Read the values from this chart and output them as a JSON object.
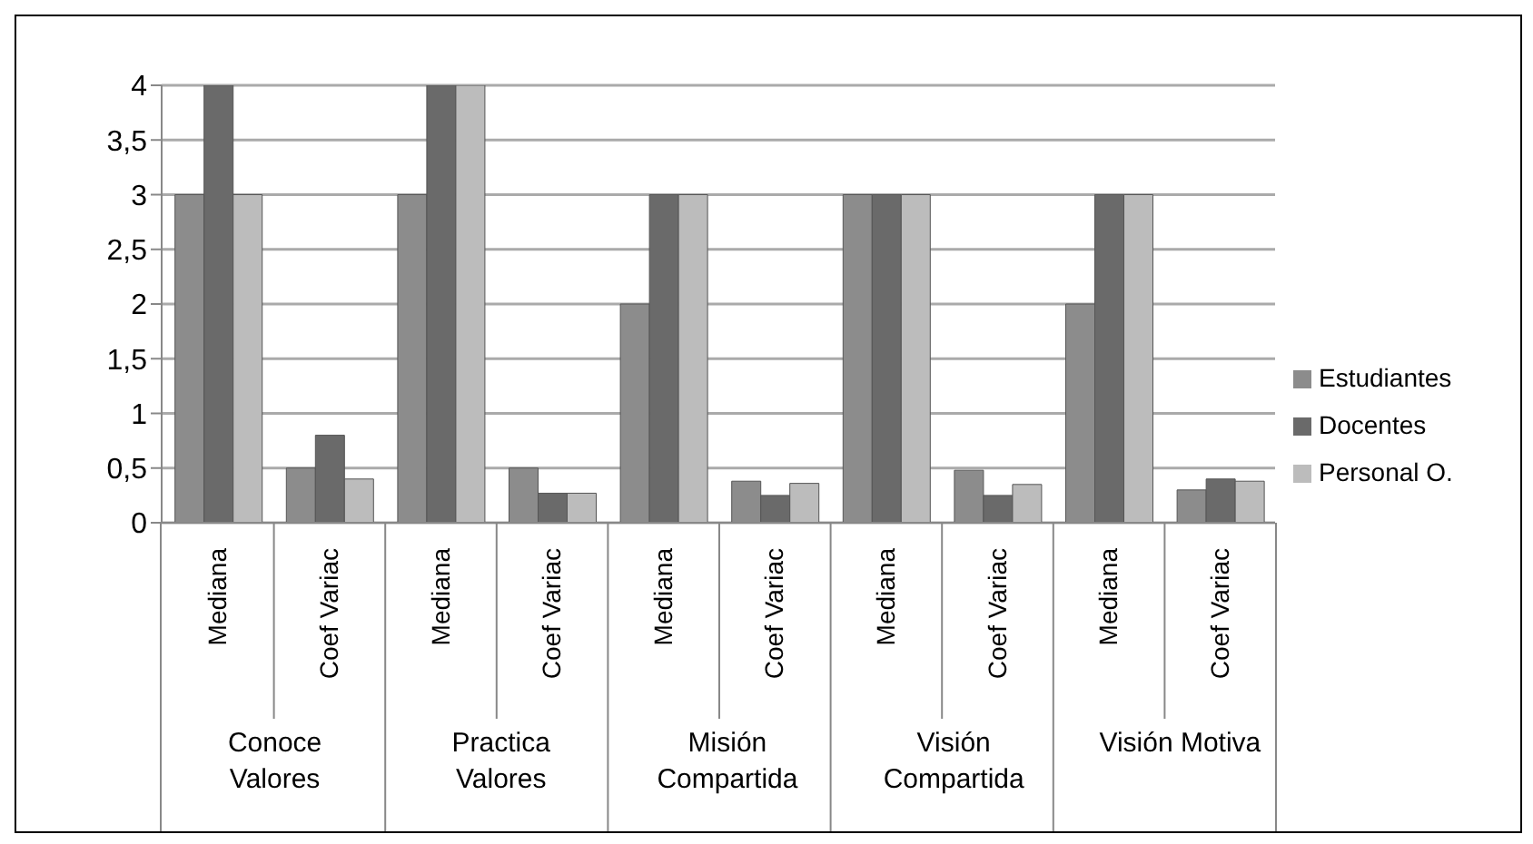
{
  "chart_data": {
    "type": "bar",
    "categories": [
      "Mediana",
      "Coef Variac",
      "Mediana",
      "Coef Variac",
      "Mediana",
      "Coef Variac",
      "Mediana",
      "Coef Variac",
      "Mediana",
      "Coef Variac"
    ],
    "annotations": [
      "Conoce Valores",
      "Practica Valores",
      "Misión Compartida",
      "Visión Compartida",
      "Visión Motiva"
    ],
    "series": [
      {
        "name": "Estudiantes",
        "color": "#8c8c8c",
        "values": [
          3,
          0.5,
          3,
          0.5,
          2,
          0.38,
          3,
          0.48,
          2,
          0.3
        ]
      },
      {
        "name": "Docentes",
        "color": "#6a6a6a",
        "values": [
          4,
          0.8,
          4,
          0.27,
          3,
          0.25,
          3,
          0.25,
          3,
          0.4
        ]
      },
      {
        "name": "Personal O.",
        "color": "#bcbcbc",
        "values": [
          3,
          0.4,
          4,
          0.27,
          3,
          0.36,
          3,
          0.35,
          3,
          0.38
        ]
      }
    ],
    "ylim": [
      0,
      4
    ],
    "yticks": [
      0,
      {
        "value": 0.5,
        "label": "0,5"
      },
      1,
      {
        "value": 1.5,
        "label": "1,5"
      },
      2,
      {
        "value": 2.5,
        "label": "2,5"
      },
      3,
      {
        "value": 3.5,
        "label": "3,5"
      },
      4
    ],
    "grid": "y",
    "legend": "right"
  }
}
